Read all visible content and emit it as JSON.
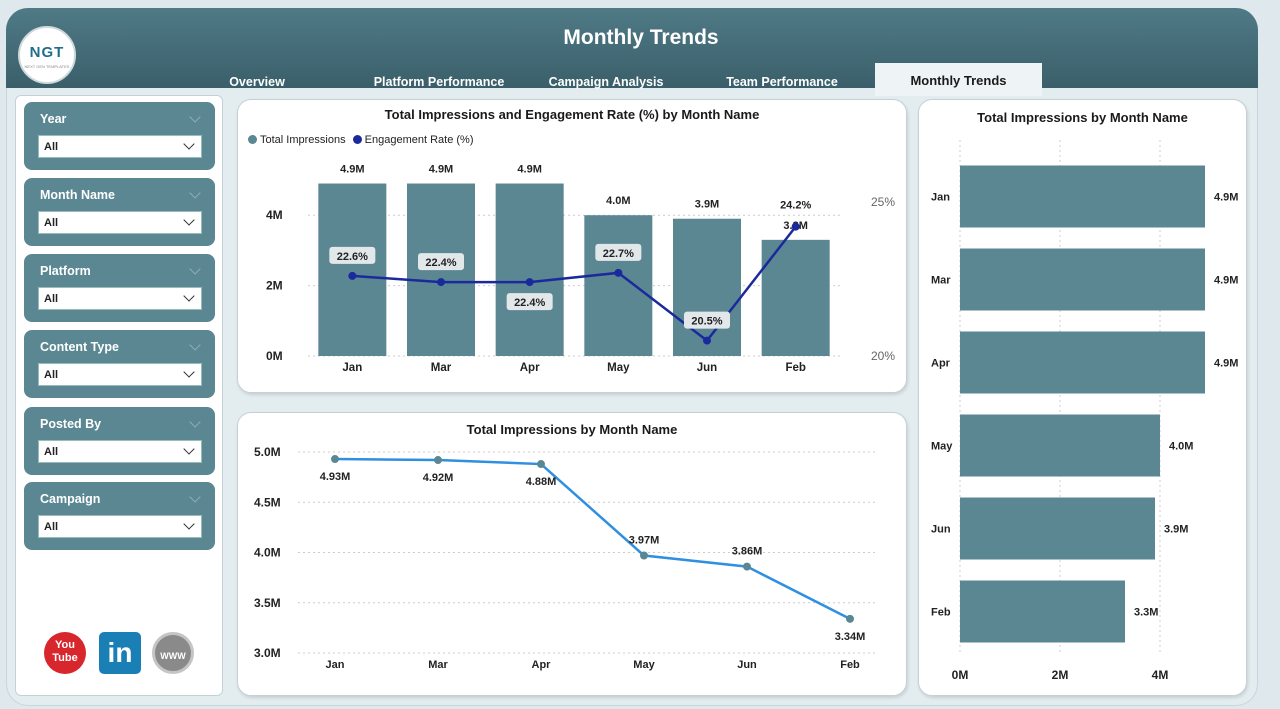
{
  "app": {
    "title": "Monthly Trends",
    "logo_text": "NGT",
    "logo_subtext": "NEXT GEN TEMPLATES"
  },
  "tabs": [
    {
      "label": "Overview",
      "active": false
    },
    {
      "label": "Platform Performance",
      "active": false
    },
    {
      "label": "Campaign Analysis",
      "active": false
    },
    {
      "label": "Team Performance",
      "active": false
    },
    {
      "label": "Monthly Trends",
      "active": true
    }
  ],
  "filters": [
    {
      "label": "Year",
      "value": "All"
    },
    {
      "label": "Month Name",
      "value": "All"
    },
    {
      "label": "Platform",
      "value": "All"
    },
    {
      "label": "Content Type",
      "value": "All"
    },
    {
      "label": "Posted By",
      "value": "All"
    },
    {
      "label": "Campaign",
      "value": "All"
    }
  ],
  "social": {
    "youtube": "You Tube",
    "linkedin": "in",
    "web": "WWW"
  },
  "colors": {
    "bar": "#5b8793",
    "engagement_line": "#1a2a9c",
    "impressions_line": "#2f8fe0",
    "header": "#46707c"
  },
  "chart_data": [
    {
      "type": "bar",
      "title": "Total Impressions and Engagement Rate (%) by Month Name",
      "categories": [
        "Jan",
        "Mar",
        "Apr",
        "May",
        "Jun",
        "Feb"
      ],
      "series": [
        {
          "name": "Total Impressions",
          "type": "bar",
          "values": [
            4.9,
            4.9,
            4.9,
            4.0,
            3.9,
            3.3
          ],
          "labels": [
            "4.9M",
            "4.9M",
            "4.9M",
            "4.0M",
            "3.9M",
            "3.3M"
          ]
        },
        {
          "name": "Engagement Rate (%)",
          "type": "line",
          "values": [
            22.6,
            22.4,
            22.4,
            22.7,
            20.5,
            24.2
          ],
          "labels": [
            "22.6%",
            "22.4%",
            "22.4%",
            "22.7%",
            "20.5%",
            "24.2%"
          ]
        }
      ],
      "y_ticks": [
        "0M",
        "2M",
        "4M"
      ],
      "ylim": [
        0,
        5
      ],
      "y2_ticks": [
        "20%",
        "25%"
      ],
      "y2lim": [
        20,
        25
      ],
      "legend": "top-left"
    },
    {
      "type": "line",
      "title": "Total Impressions by Month Name",
      "categories": [
        "Jan",
        "Mar",
        "Apr",
        "May",
        "Jun",
        "Feb"
      ],
      "values": [
        4.93,
        4.92,
        4.88,
        3.97,
        3.86,
        3.34
      ],
      "labels": [
        "4.93M",
        "4.92M",
        "4.88M",
        "3.97M",
        "3.86M",
        "3.34M"
      ],
      "y_ticks": [
        "5.0M",
        "4.5M",
        "4.0M",
        "3.5M",
        "3.0M"
      ],
      "ylim": [
        3.0,
        5.0
      ]
    },
    {
      "type": "bar",
      "orientation": "horizontal",
      "title": "Total Impressions by Month Name",
      "categories": [
        "Jan",
        "Mar",
        "Apr",
        "May",
        "Jun",
        "Feb"
      ],
      "values": [
        4.9,
        4.9,
        4.9,
        4.0,
        3.9,
        3.3
      ],
      "labels": [
        "4.9M",
        "4.9M",
        "4.9M",
        "4.0M",
        "3.9M",
        "3.3M"
      ],
      "x_ticks": [
        "0M",
        "2M",
        "4M"
      ],
      "xlim": [
        0,
        5
      ]
    }
  ]
}
